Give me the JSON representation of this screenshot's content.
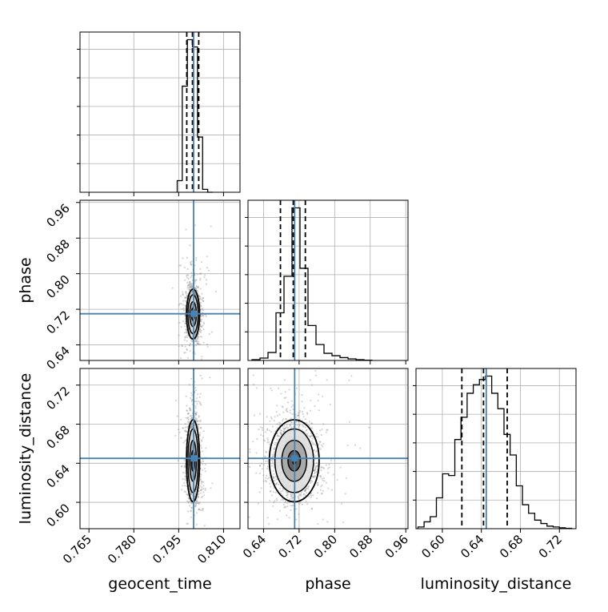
{
  "chart_data": {
    "type": "corner",
    "parameters": [
      "geocent_time",
      "phase",
      "luminosity_distance"
    ],
    "axis_labels": {
      "geocent_time": "geocent_time",
      "phase": "phase",
      "luminosity_distance": "luminosity_distance"
    },
    "truths": {
      "geocent_time": 0.8,
      "phase": 0.71,
      "luminosity_distance": 0.645
    },
    "ranges": {
      "geocent_time": [
        0.762,
        0.8155
      ],
      "phase": [
        0.605,
        0.965
      ],
      "luminosity_distance": [
        0.573,
        0.737
      ]
    },
    "ticks": {
      "geocent_time": [
        "0.765",
        "0.780",
        "0.795",
        "0.810"
      ],
      "phase": [
        "0.64",
        "0.72",
        "0.80",
        "0.88",
        "0.96"
      ],
      "luminosity_distance": [
        "0.60",
        "0.64",
        "0.68",
        "0.72"
      ]
    },
    "quantiles": {
      "geocent_time": [
        0.7977,
        0.7996,
        0.8017
      ],
      "phase": [
        0.678,
        0.7068,
        0.734
      ],
      "luminosity_distance": [
        0.62,
        0.6422,
        0.6665
      ]
    },
    "histograms": {
      "geocent_time": {
        "edges": [
          0.7945,
          0.7962,
          0.7979,
          0.7996,
          0.8013,
          0.803,
          0.8047,
          0.8064
        ],
        "counts": [
          0.08,
          0.73,
          1.05,
          1.0,
          0.38,
          0.02,
          0.0
        ]
      },
      "phase": {
        "edges": [
          0.614,
          0.632,
          0.65,
          0.668,
          0.686,
          0.704,
          0.722,
          0.74,
          0.758,
          0.776,
          0.794,
          0.812,
          0.83,
          0.848,
          0.866,
          0.884
        ],
        "counts": [
          0.005,
          0.015,
          0.05,
          0.3,
          0.53,
          0.96,
          0.58,
          0.22,
          0.1,
          0.045,
          0.03,
          0.018,
          0.01,
          0.005,
          0.002
        ]
      },
      "luminosity_distance": {
        "edges": [
          0.575,
          0.5813,
          0.5876,
          0.5939,
          0.6002,
          0.6065,
          0.6128,
          0.6191,
          0.6254,
          0.6317,
          0.638,
          0.6443,
          0.6506,
          0.6569,
          0.6632,
          0.6695,
          0.6758,
          0.6821,
          0.6884,
          0.6947,
          0.701,
          0.7073,
          0.7136,
          0.7199,
          0.7262,
          0.7325
        ],
        "counts": [
          0.01,
          0.04,
          0.07,
          0.18,
          0.32,
          0.31,
          0.52,
          0.65,
          0.79,
          0.84,
          0.87,
          0.89,
          0.79,
          0.7,
          0.55,
          0.43,
          0.25,
          0.14,
          0.09,
          0.05,
          0.03,
          0.015,
          0.01,
          0.005,
          0.002
        ]
      }
    },
    "posterior": {
      "mean": {
        "geocent_time": 0.7998,
        "phase": 0.709,
        "luminosity_distance": 0.6425
      },
      "std": {
        "geocent_time": 0.0011,
        "phase": 0.028,
        "luminosity_distance": 0.021
      }
    },
    "grid": true,
    "colors": {
      "truth": "#4682b4",
      "hist": "#000000",
      "quantile": "#000000",
      "contour": "#000000",
      "points": "#888888",
      "grid": "#b0b0b0"
    }
  }
}
